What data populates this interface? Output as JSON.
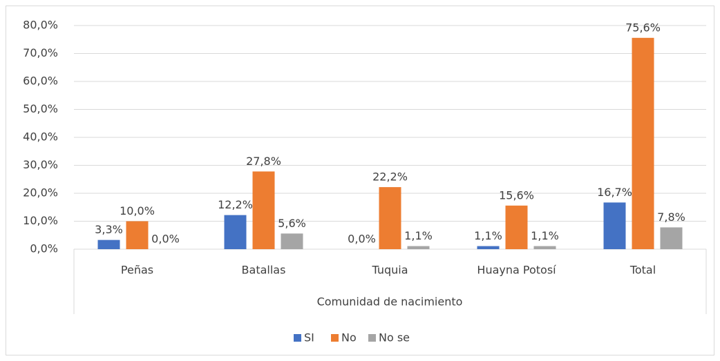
{
  "chart_data": {
    "type": "bar",
    "x_label": "Comunidad de nacimiento",
    "categories": [
      "Peñas",
      "Batallas",
      "Tuquia",
      "Huayna Potosí",
      "Total"
    ],
    "series": [
      {
        "name": "SI",
        "color": "#4472c4",
        "values": [
          3.3,
          12.2,
          0.0,
          1.1,
          16.7
        ],
        "value_labels": [
          "3,3%",
          "12,2%",
          "0,0%",
          "1,1%",
          "16,7%"
        ]
      },
      {
        "name": "No",
        "color": "#ed7d31",
        "values": [
          10.0,
          27.8,
          22.2,
          15.6,
          75.6
        ],
        "value_labels": [
          "10,0%",
          "27,8%",
          "22,2%",
          "15,6%",
          "75,6%"
        ]
      },
      {
        "name": "No se",
        "color": "#a5a5a5",
        "values": [
          0.0,
          5.6,
          1.1,
          1.1,
          7.8
        ],
        "value_labels": [
          "0,0%",
          "5,6%",
          "1,1%",
          "1,1%",
          "7,8%"
        ]
      }
    ],
    "ylim": [
      0,
      80
    ],
    "yticks": [
      {
        "value": 0,
        "label": "0,0%"
      },
      {
        "value": 10,
        "label": "10,0%"
      },
      {
        "value": 20,
        "label": "20,0%"
      },
      {
        "value": 30,
        "label": "30,0%"
      },
      {
        "value": 40,
        "label": "40,0%"
      },
      {
        "value": 50,
        "label": "50,0%"
      },
      {
        "value": 60,
        "label": "60,0%"
      },
      {
        "value": 70,
        "label": "70,0%"
      },
      {
        "value": 80,
        "label": "80,0%"
      }
    ],
    "grid": true,
    "legend": "bottom"
  }
}
